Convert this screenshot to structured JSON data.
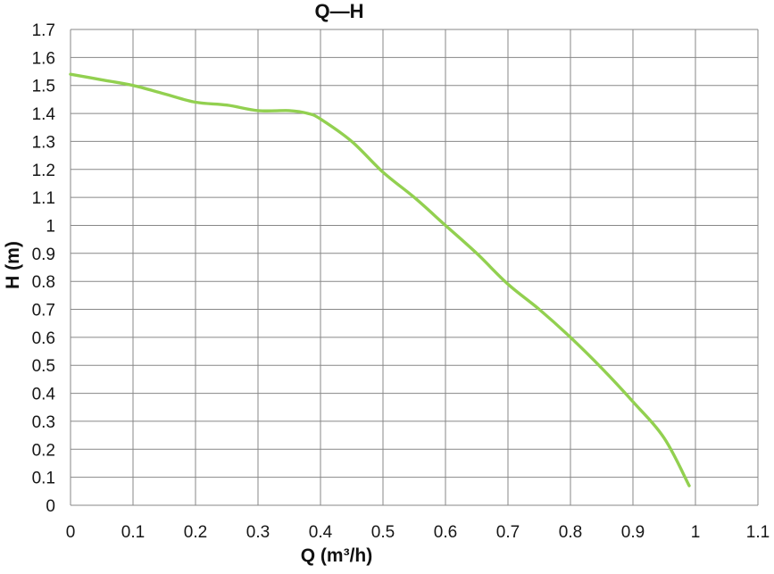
{
  "chart_data": {
    "type": "line",
    "title": "Q—H",
    "xlabel": "Q (m³/h)",
    "ylabel": "H (m)",
    "xlim": [
      0,
      1.1
    ],
    "ylim": [
      0,
      1.7
    ],
    "grid": true,
    "legend": false,
    "line_color": "#92D050",
    "grid_color": "#878787",
    "tick_color": "#161616",
    "background_color": "#FFFFFF",
    "x_ticks": [
      {
        "v": 0.0,
        "label": "0"
      },
      {
        "v": 0.1,
        "label": "0.1"
      },
      {
        "v": 0.2,
        "label": "0.2"
      },
      {
        "v": 0.3,
        "label": "0.3"
      },
      {
        "v": 0.4,
        "label": "0.4"
      },
      {
        "v": 0.5,
        "label": "0.5"
      },
      {
        "v": 0.6,
        "label": "0.6"
      },
      {
        "v": 0.7,
        "label": "0.7"
      },
      {
        "v": 0.8,
        "label": "0.8"
      },
      {
        "v": 0.9,
        "label": "0.9"
      },
      {
        "v": 1.0,
        "label": "1"
      },
      {
        "v": 1.1,
        "label": "1.1"
      }
    ],
    "y_ticks": [
      {
        "v": 0.0,
        "label": "0"
      },
      {
        "v": 0.1,
        "label": "0.1"
      },
      {
        "v": 0.2,
        "label": "0.2"
      },
      {
        "v": 0.3,
        "label": "0.3"
      },
      {
        "v": 0.4,
        "label": "0.4"
      },
      {
        "v": 0.5,
        "label": "0.5"
      },
      {
        "v": 0.6,
        "label": "0.6"
      },
      {
        "v": 0.7,
        "label": "0.7"
      },
      {
        "v": 0.8,
        "label": "0.8"
      },
      {
        "v": 0.9,
        "label": "0.9"
      },
      {
        "v": 1.0,
        "label": "1"
      },
      {
        "v": 1.1,
        "label": "1.1"
      },
      {
        "v": 1.2,
        "label": "1.2"
      },
      {
        "v": 1.3,
        "label": "1.3"
      },
      {
        "v": 1.4,
        "label": "1.4"
      },
      {
        "v": 1.5,
        "label": "1.5"
      },
      {
        "v": 1.6,
        "label": "1.6"
      },
      {
        "v": 1.7,
        "label": "1.7"
      }
    ],
    "series": [
      {
        "points": [
          [
            0.0,
            1.54
          ],
          [
            0.05,
            1.52
          ],
          [
            0.1,
            1.5
          ],
          [
            0.15,
            1.47
          ],
          [
            0.2,
            1.44
          ],
          [
            0.25,
            1.43
          ],
          [
            0.3,
            1.41
          ],
          [
            0.35,
            1.41
          ],
          [
            0.38,
            1.4
          ],
          [
            0.4,
            1.38
          ],
          [
            0.45,
            1.3
          ],
          [
            0.5,
            1.19
          ],
          [
            0.55,
            1.1
          ],
          [
            0.6,
            1.0
          ],
          [
            0.65,
            0.9
          ],
          [
            0.7,
            0.79
          ],
          [
            0.75,
            0.7
          ],
          [
            0.8,
            0.6
          ],
          [
            0.85,
            0.49
          ],
          [
            0.9,
            0.37
          ],
          [
            0.95,
            0.24
          ],
          [
            0.99,
            0.07
          ]
        ]
      }
    ]
  }
}
